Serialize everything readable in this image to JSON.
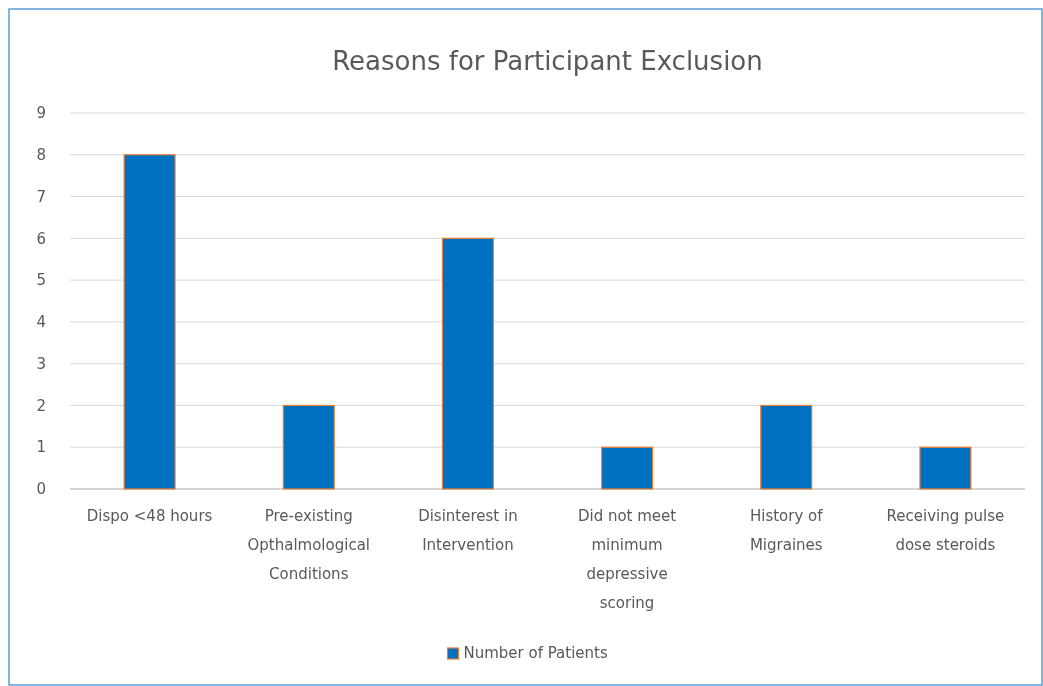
{
  "chart_data": {
    "type": "bar",
    "title": "Reasons for Participant Exclusion",
    "categories": [
      "Dispo <48 hours",
      "Pre-existing Opthalmological Conditions",
      "Disinterest in Intervention",
      "Did not meet minimum depressive scoring",
      "History of Migraines",
      "Receiving pulse dose steroids"
    ],
    "series": [
      {
        "name": "Number of Patients",
        "color": "#0070c0",
        "values": [
          8,
          2,
          6,
          1,
          2,
          1
        ]
      }
    ],
    "ylim": [
      0,
      9
    ],
    "yticks": [
      0,
      1,
      2,
      3,
      4,
      5,
      6,
      7,
      8,
      9
    ],
    "grid": "y",
    "legend": "bottom"
  }
}
